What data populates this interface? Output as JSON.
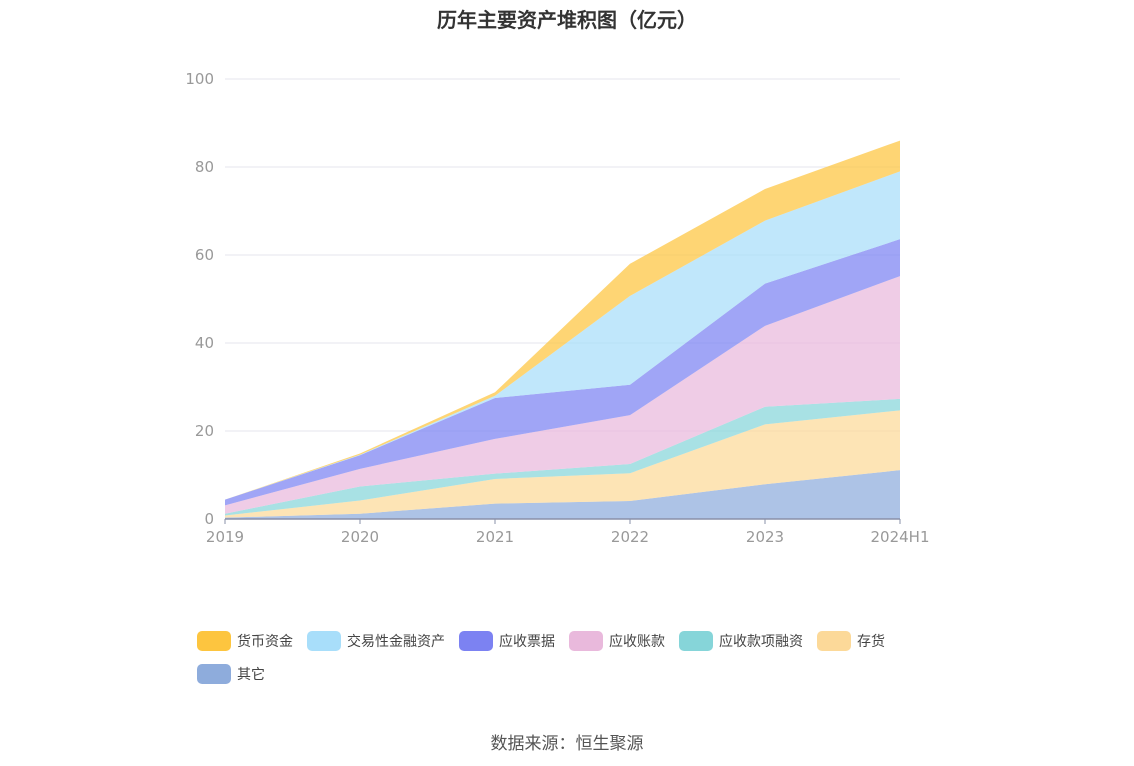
{
  "chart_data": {
    "type": "area",
    "title": "历年主要资产堆积图（亿元）",
    "categories": [
      "2019",
      "2020",
      "2021",
      "2022",
      "2023",
      "2024H1"
    ],
    "ylim": [
      0,
      100
    ],
    "yticks": [
      "0",
      "20",
      "40",
      "60",
      "80",
      "100"
    ],
    "grid": true,
    "legend_position": "bottom",
    "series": [
      {
        "name": "其它",
        "color": "#8eacdc",
        "values": [
          0.3,
          1.2,
          3.5,
          4.1,
          7.9,
          11.1
        ]
      },
      {
        "name": "存货",
        "color": "#fcd999",
        "values": [
          0.5,
          3.0,
          5.6,
          6.3,
          13.6,
          13.6
        ]
      },
      {
        "name": "应收款项融资",
        "color": "#86d5d9",
        "values": [
          0.4,
          3.2,
          1.2,
          2.1,
          4.0,
          2.6
        ]
      },
      {
        "name": "应收账款",
        "color": "#e9b9dc",
        "values": [
          1.9,
          4.0,
          7.9,
          11.1,
          18.4,
          27.9
        ]
      },
      {
        "name": "应收票据",
        "color": "#7c82f2",
        "values": [
          1.3,
          3.1,
          9.3,
          6.9,
          9.6,
          8.4
        ]
      },
      {
        "name": "交易性金融资产",
        "color": "#a8defa",
        "values": [
          0.0,
          0.1,
          0.5,
          20.2,
          14.3,
          15.4
        ]
      },
      {
        "name": "货币资金",
        "color": "#fdc53f",
        "values": [
          0.0,
          0.3,
          0.8,
          7.3,
          7.2,
          7.0
        ]
      }
    ]
  },
  "legend": [
    {
      "label": "货币资金",
      "color": "#fdc53f"
    },
    {
      "label": "交易性金融资产",
      "color": "#a8defa"
    },
    {
      "label": "应收票据",
      "color": "#7c82f2"
    },
    {
      "label": "应收账款",
      "color": "#e9b9dc"
    },
    {
      "label": "应收款项融资",
      "color": "#86d5d9"
    },
    {
      "label": "存货",
      "color": "#fcd999"
    },
    {
      "label": "其它",
      "color": "#8eacdc"
    }
  ],
  "source_text": "数据来源：恒生聚源"
}
